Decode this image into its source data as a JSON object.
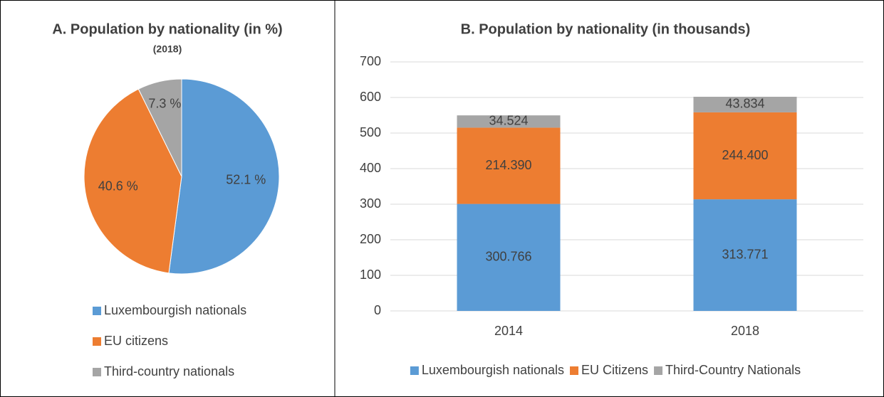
{
  "chart_data": [
    {
      "type": "pie",
      "title": "A. Population by nationality (in %)",
      "subtitle": "(2018)",
      "categories": [
        "Luxembourgish nationals",
        "EU citizens",
        "Third-country nationals"
      ],
      "values": [
        52.1,
        40.6,
        7.3
      ],
      "value_labels": [
        "52.1 %",
        "40.6 %",
        "7.3 %"
      ],
      "colors": [
        "#5b9bd5",
        "#ed7d31",
        "#a5a5a5"
      ],
      "legend": "bottom"
    },
    {
      "type": "stacked_bar",
      "title": "B. Population by nationality (in thousands)",
      "categories": [
        "2014",
        "2018"
      ],
      "series": [
        {
          "name": "Luxembourgish nationals",
          "color": "#5b9bd5",
          "values": [
            300.766,
            313.771
          ],
          "value_labels": [
            "300.766",
            "313.771"
          ]
        },
        {
          "name": "EU Citizens",
          "color": "#ed7d31",
          "values": [
            214.39,
            244.4
          ],
          "value_labels": [
            "214.390",
            "244.400"
          ]
        },
        {
          "name": "Third-Country Nationals",
          "color": "#a5a5a5",
          "values": [
            34.524,
            43.834
          ],
          "value_labels": [
            "34.524",
            "43.834"
          ]
        }
      ],
      "ylim": [
        0,
        700
      ],
      "yticks": [
        0,
        100,
        200,
        300,
        400,
        500,
        600,
        700
      ],
      "grid": true,
      "legend": "bottom"
    }
  ]
}
